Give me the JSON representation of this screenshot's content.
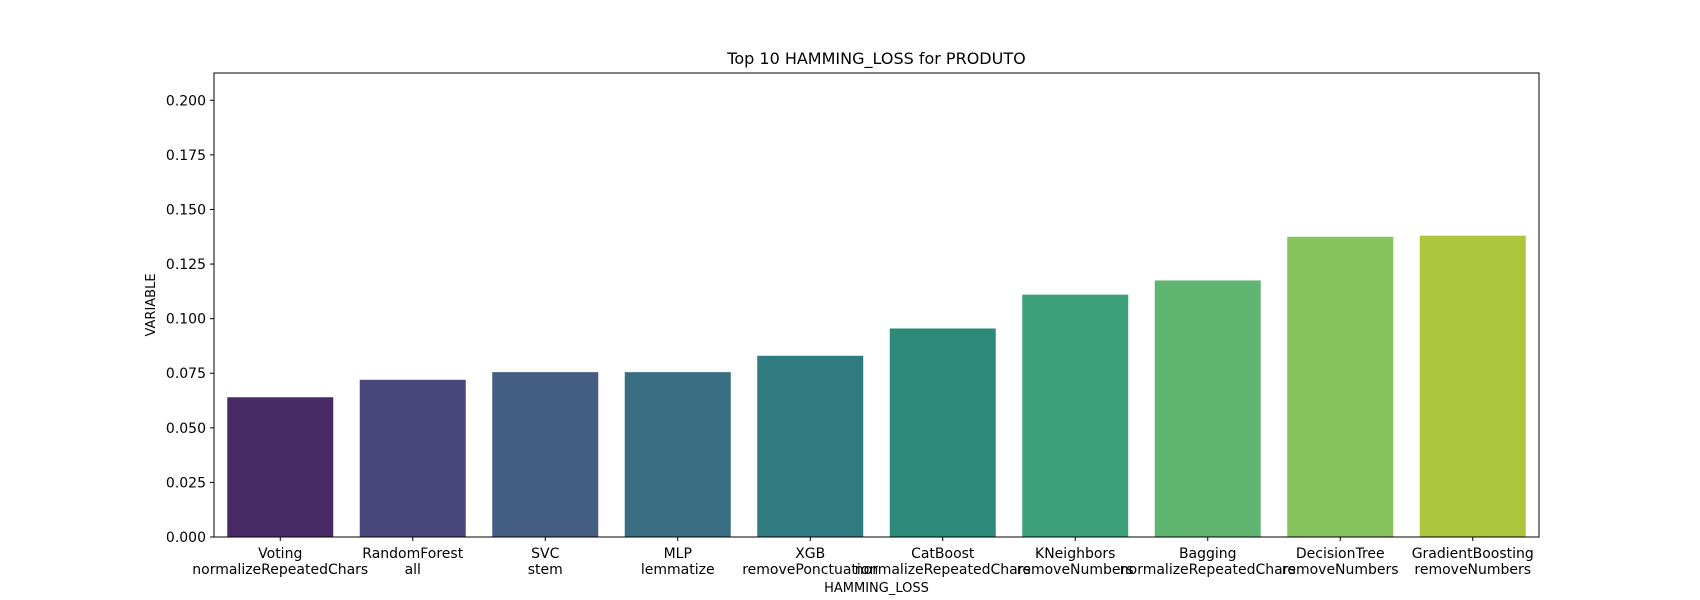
{
  "chart_data": {
    "type": "bar",
    "title": "Top 10 HAMMING_LOSS for PRODUTO",
    "xlabel": "HAMMING_LOSS",
    "ylabel": "VARIABLE",
    "ylim": [
      0,
      0.2125
    ],
    "yticks": [
      "0.000",
      "0.025",
      "0.050",
      "0.075",
      "0.100",
      "0.125",
      "0.150",
      "0.175",
      "0.200"
    ],
    "grid": false,
    "categories": [
      [
        "Voting",
        "normalizeRepeatedChars"
      ],
      [
        "RandomForest",
        "all"
      ],
      [
        "SVC",
        "stem"
      ],
      [
        "MLP",
        "lemmatize"
      ],
      [
        "XGB",
        "removePonctuation"
      ],
      [
        "CatBoost",
        "normalizeRepeatedChars"
      ],
      [
        "KNeighbors",
        "removeNumbers"
      ],
      [
        "Bagging",
        "normalizeRepeatedChars"
      ],
      [
        "DecisionTree",
        "removeNumbers"
      ],
      [
        "GradientBoosting",
        "removeNumbers"
      ]
    ],
    "values": [
      0.064,
      0.072,
      0.0755,
      0.0755,
      0.083,
      0.0955,
      0.111,
      0.1175,
      0.1375,
      0.138
    ],
    "colors": [
      "#482a67",
      "#4a477c",
      "#435e82",
      "#3a6e82",
      "#307b7f",
      "#2d8a7b",
      "#3da17b",
      "#60b571",
      "#86c35d",
      "#adc63d"
    ]
  }
}
